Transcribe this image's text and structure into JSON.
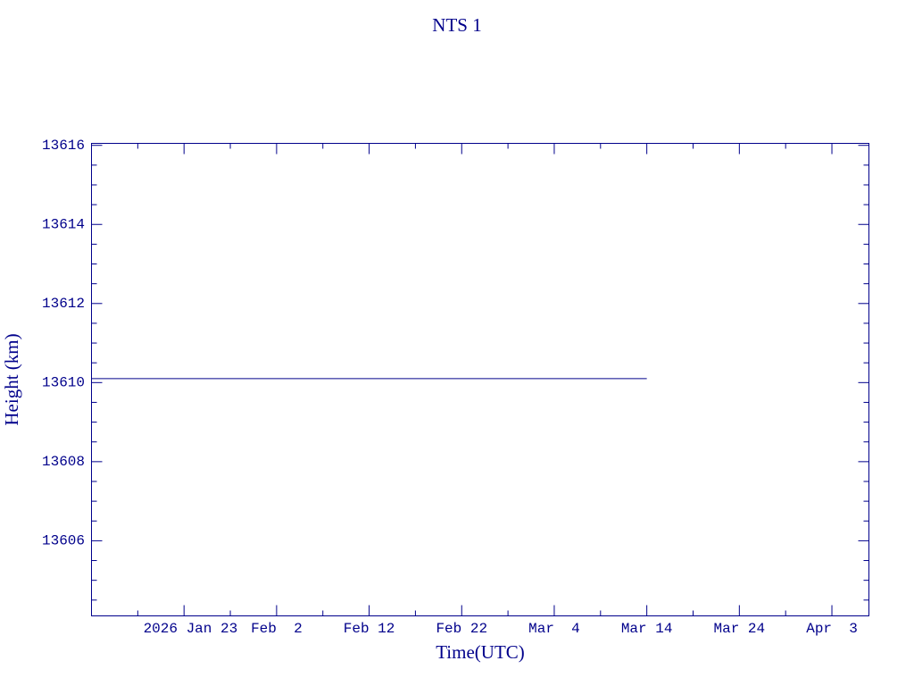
{
  "chart_data": {
    "type": "line",
    "title": "NTS 1",
    "xlabel": "Time(UTC)",
    "ylabel": "Height (km)",
    "x": [
      "2026-01-13",
      "2026-03-14"
    ],
    "series": [
      {
        "name": "NTS 1",
        "color": "#00008b",
        "values": [
          13610.1,
          13610.1
        ]
      }
    ],
    "xlim": [
      "2026-01-13",
      "2026-04-07"
    ],
    "xticks": [
      {
        "value": "2026-01-23",
        "label": "2026 Jan 23"
      },
      {
        "value": "2026-02-02",
        "label": "Feb  2"
      },
      {
        "value": "2026-02-12",
        "label": "Feb 12"
      },
      {
        "value": "2026-02-22",
        "label": "Feb 22"
      },
      {
        "value": "2026-03-04",
        "label": "Mar  4"
      },
      {
        "value": "2026-03-14",
        "label": "Mar 14"
      },
      {
        "value": "2026-03-24",
        "label": "Mar 24"
      },
      {
        "value": "2026-04-03",
        "label": "Apr  3"
      }
    ],
    "xminorticks": [
      "2026-01-18",
      "2026-01-28",
      "2026-02-07",
      "2026-02-17",
      "2026-02-27",
      "2026-03-09",
      "2026-03-19",
      "2026-03-29"
    ],
    "ylim": [
      13604.1,
      13616.05
    ],
    "yticks": [
      13606,
      13608,
      13610,
      13612,
      13614,
      13616
    ],
    "yminorticks": [
      13604.5,
      13605,
      13605.5,
      13606.5,
      13607,
      13607.5,
      13608.5,
      13609,
      13609.5,
      13610.5,
      13611,
      13611.5,
      13612.5,
      13613,
      13613.5,
      13614.5,
      13615,
      13615.5
    ]
  }
}
